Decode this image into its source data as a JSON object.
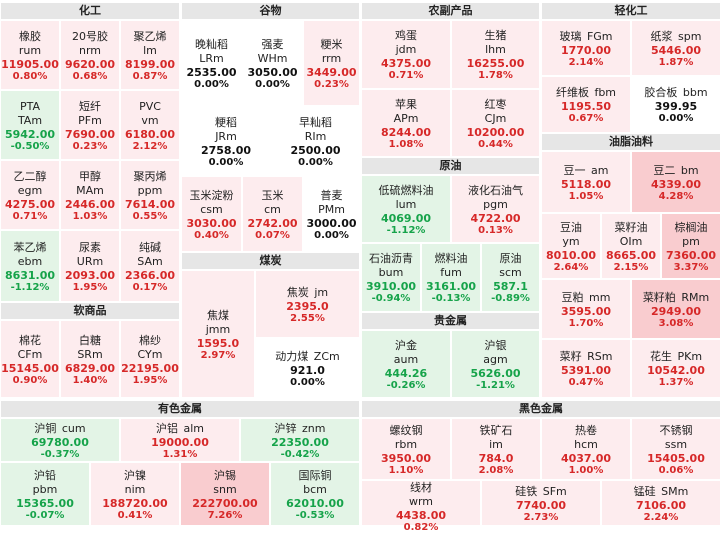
{
  "colors": {
    "up_light": "#fdecee",
    "up_medium": "#f9cccf",
    "down_light": "#e3f4e6",
    "flat": "#ffffff",
    "header": "#e6e6e6",
    "text_up": "#d62828",
    "text_down": "#16a34a"
  },
  "sections": [
    {
      "id": "chemicals",
      "title": "化工"
    },
    {
      "id": "grains",
      "title": "谷物"
    },
    {
      "id": "agri",
      "title": "农副产品"
    },
    {
      "id": "light",
      "title": "轻化工"
    },
    {
      "id": "oils",
      "title": "油脂油料"
    },
    {
      "id": "crude",
      "title": "原油"
    },
    {
      "id": "coal",
      "title": "煤炭"
    },
    {
      "id": "softs",
      "title": "软商品"
    },
    {
      "id": "precious",
      "title": "贵金属"
    },
    {
      "id": "nonferrous",
      "title": "有色金属"
    },
    {
      "id": "ferrous",
      "title": "黑色金属"
    }
  ],
  "tiles": [
    {
      "name": "橡胶",
      "code": "rum",
      "price": "11905.00",
      "pct": "0.80%",
      "dir": "up"
    },
    {
      "name": "20号胶",
      "code": "nrm",
      "price": "9620.00",
      "pct": "0.68%",
      "dir": "up"
    },
    {
      "name": "聚乙烯",
      "code": "lm",
      "price": "8199.00",
      "pct": "0.87%",
      "dir": "up"
    },
    {
      "name": "PTA",
      "code": "TAm",
      "price": "5942.00",
      "pct": "-0.50%",
      "dir": "dn"
    },
    {
      "name": "短纤",
      "code": "PFm",
      "price": "7690.00",
      "pct": "0.23%",
      "dir": "up"
    },
    {
      "name": "PVC",
      "code": "vm",
      "price": "6180.00",
      "pct": "2.12%",
      "dir": "up"
    },
    {
      "name": "乙二醇",
      "code": "egm",
      "price": "4275.00",
      "pct": "0.71%",
      "dir": "up"
    },
    {
      "name": "甲醇",
      "code": "MAm",
      "price": "2446.00",
      "pct": "1.03%",
      "dir": "up"
    },
    {
      "name": "聚丙烯",
      "code": "ppm",
      "price": "7614.00",
      "pct": "0.55%",
      "dir": "up"
    },
    {
      "name": "苯乙烯",
      "code": "ebm",
      "price": "8631.00",
      "pct": "-1.12%",
      "dir": "dn"
    },
    {
      "name": "尿素",
      "code": "URm",
      "price": "2093.00",
      "pct": "1.95%",
      "dir": "up"
    },
    {
      "name": "纯碱",
      "code": "SAm",
      "price": "2366.00",
      "pct": "0.17%",
      "dir": "up"
    },
    {
      "name": "晚籼稻",
      "code": "LRm",
      "price": "2535.00",
      "pct": "0.00%",
      "dir": "fl"
    },
    {
      "name": "强麦",
      "code": "WHm",
      "price": "3050.00",
      "pct": "0.00%",
      "dir": "fl"
    },
    {
      "name": "粳米",
      "code": "rrm",
      "price": "3449.00",
      "pct": "0.23%",
      "dir": "up"
    },
    {
      "name": "粳稻",
      "code": "JRm",
      "price": "2758.00",
      "pct": "0.00%",
      "dir": "fl"
    },
    {
      "name": "早籼稻",
      "code": "RIm",
      "price": "2500.00",
      "pct": "0.00%",
      "dir": "fl"
    },
    {
      "name": "玉米淀粉",
      "code": "csm",
      "price": "3030.00",
      "pct": "0.40%",
      "dir": "up"
    },
    {
      "name": "玉米",
      "code": "cm",
      "price": "2742.00",
      "pct": "0.07%",
      "dir": "up"
    },
    {
      "name": "普麦",
      "code": "PMm",
      "price": "3000.00",
      "pct": "0.00%",
      "dir": "fl"
    },
    {
      "name": "鸡蛋",
      "code": "jdm",
      "price": "4375.00",
      "pct": "0.71%",
      "dir": "up"
    },
    {
      "name": "生猪",
      "code": "lhm",
      "price": "16255.00",
      "pct": "1.78%",
      "dir": "up"
    },
    {
      "name": "苹果",
      "code": "APm",
      "price": "8244.00",
      "pct": "1.08%",
      "dir": "up"
    },
    {
      "name": "红枣",
      "code": "CJm",
      "price": "10200.00",
      "pct": "0.44%",
      "dir": "up"
    },
    {
      "name": "玻璃",
      "code": "FGm",
      "price": "1770.00",
      "pct": "2.14%",
      "dir": "up"
    },
    {
      "name": "纸浆",
      "code": "spm",
      "price": "5446.00",
      "pct": "1.87%",
      "dir": "up"
    },
    {
      "name": "纤维板",
      "code": "fbm",
      "price": "1195.50",
      "pct": "0.67%",
      "dir": "up"
    },
    {
      "name": "胶合板",
      "code": "bbm",
      "price": "399.95",
      "pct": "0.00%",
      "dir": "fl"
    },
    {
      "name": "豆一",
      "code": "am",
      "price": "5118.00",
      "pct": "1.05%",
      "dir": "up"
    },
    {
      "name": "豆二",
      "code": "bm",
      "price": "4339.00",
      "pct": "4.28%",
      "dir": "up"
    },
    {
      "name": "豆油",
      "code": "ym",
      "price": "8010.00",
      "pct": "2.64%",
      "dir": "up"
    },
    {
      "name": "菜籽油",
      "code": "OIm",
      "price": "8665.00",
      "pct": "2.15%",
      "dir": "up"
    },
    {
      "name": "棕榈油",
      "code": "pm",
      "price": "7360.00",
      "pct": "3.37%",
      "dir": "up"
    },
    {
      "name": "豆粕",
      "code": "mm",
      "price": "3595.00",
      "pct": "1.70%",
      "dir": "up"
    },
    {
      "name": "菜籽粕",
      "code": "RMm",
      "price": "2949.00",
      "pct": "3.08%",
      "dir": "up"
    },
    {
      "name": "菜籽",
      "code": "RSm",
      "price": "5391.00",
      "pct": "0.47%",
      "dir": "up"
    },
    {
      "name": "花生",
      "code": "PKm",
      "price": "10542.00",
      "pct": "1.37%",
      "dir": "up"
    },
    {
      "name": "低硫燃料油",
      "code": "lum",
      "price": "4069.00",
      "pct": "-1.12%",
      "dir": "dn"
    },
    {
      "name": "液化石油气",
      "code": "pgm",
      "price": "4722.00",
      "pct": "0.13%",
      "dir": "up"
    },
    {
      "name": "石油沥青",
      "code": "bum",
      "price": "3910.00",
      "pct": "-0.94%",
      "dir": "dn"
    },
    {
      "name": "燃料油",
      "code": "fum",
      "price": "3161.00",
      "pct": "-0.13%",
      "dir": "dn"
    },
    {
      "name": "原油",
      "code": "scm",
      "price": "587.1",
      "pct": "-0.89%",
      "dir": "dn"
    },
    {
      "name": "焦炭",
      "code": "jm",
      "price": "2395.0",
      "pct": "2.55%",
      "dir": "up"
    },
    {
      "name": "焦煤",
      "code": "jmm",
      "price": "1595.0",
      "pct": "2.97%",
      "dir": "up"
    },
    {
      "name": "动力煤",
      "code": "ZCm",
      "price": "921.0",
      "pct": "0.00%",
      "dir": "fl"
    },
    {
      "name": "棉花",
      "code": "CFm",
      "price": "15145.00",
      "pct": "0.90%",
      "dir": "up"
    },
    {
      "name": "白糖",
      "code": "SRm",
      "price": "6829.00",
      "pct": "1.40%",
      "dir": "up"
    },
    {
      "name": "棉纱",
      "code": "CYm",
      "price": "22195.00",
      "pct": "1.95%",
      "dir": "up"
    },
    {
      "name": "沪金",
      "code": "aum",
      "price": "444.26",
      "pct": "-0.26%",
      "dir": "dn"
    },
    {
      "name": "沪银",
      "code": "agm",
      "price": "5626.00",
      "pct": "-1.21%",
      "dir": "dn"
    },
    {
      "name": "沪铜",
      "code": "cum",
      "price": "69780.00",
      "pct": "-0.37%",
      "dir": "dn"
    },
    {
      "name": "沪铝",
      "code": "alm",
      "price": "19000.00",
      "pct": "1.31%",
      "dir": "up"
    },
    {
      "name": "沪锌",
      "code": "znm",
      "price": "22350.00",
      "pct": "-0.42%",
      "dir": "dn"
    },
    {
      "name": "沪铅",
      "code": "pbm",
      "price": "15365.00",
      "pct": "-0.07%",
      "dir": "dn"
    },
    {
      "name": "沪镍",
      "code": "nim",
      "price": "188720.00",
      "pct": "0.41%",
      "dir": "up"
    },
    {
      "name": "沪锡",
      "code": "snm",
      "price": "222700.00",
      "pct": "7.26%",
      "dir": "up"
    },
    {
      "name": "国际铜",
      "code": "bcm",
      "price": "62010.00",
      "pct": "-0.53%",
      "dir": "dn"
    },
    {
      "name": "螺纹钢",
      "code": "rbm",
      "price": "3950.00",
      "pct": "1.10%",
      "dir": "up"
    },
    {
      "name": "铁矿石",
      "code": "im",
      "price": "784.0",
      "pct": "2.08%",
      "dir": "up"
    },
    {
      "name": "热卷",
      "code": "hcm",
      "price": "4037.00",
      "pct": "1.00%",
      "dir": "up"
    },
    {
      "name": "不锈钢",
      "code": "ssm",
      "price": "15405.00",
      "pct": "0.06%",
      "dir": "up"
    },
    {
      "name": "线材",
      "code": "wrm",
      "price": "4438.00",
      "pct": "0.82%",
      "dir": "up"
    },
    {
      "name": "硅铁",
      "code": "SFm",
      "price": "7740.00",
      "pct": "2.73%",
      "dir": "up"
    },
    {
      "name": "锰硅",
      "code": "SMm",
      "price": "7106.00",
      "pct": "2.24%",
      "dir": "up"
    }
  ]
}
